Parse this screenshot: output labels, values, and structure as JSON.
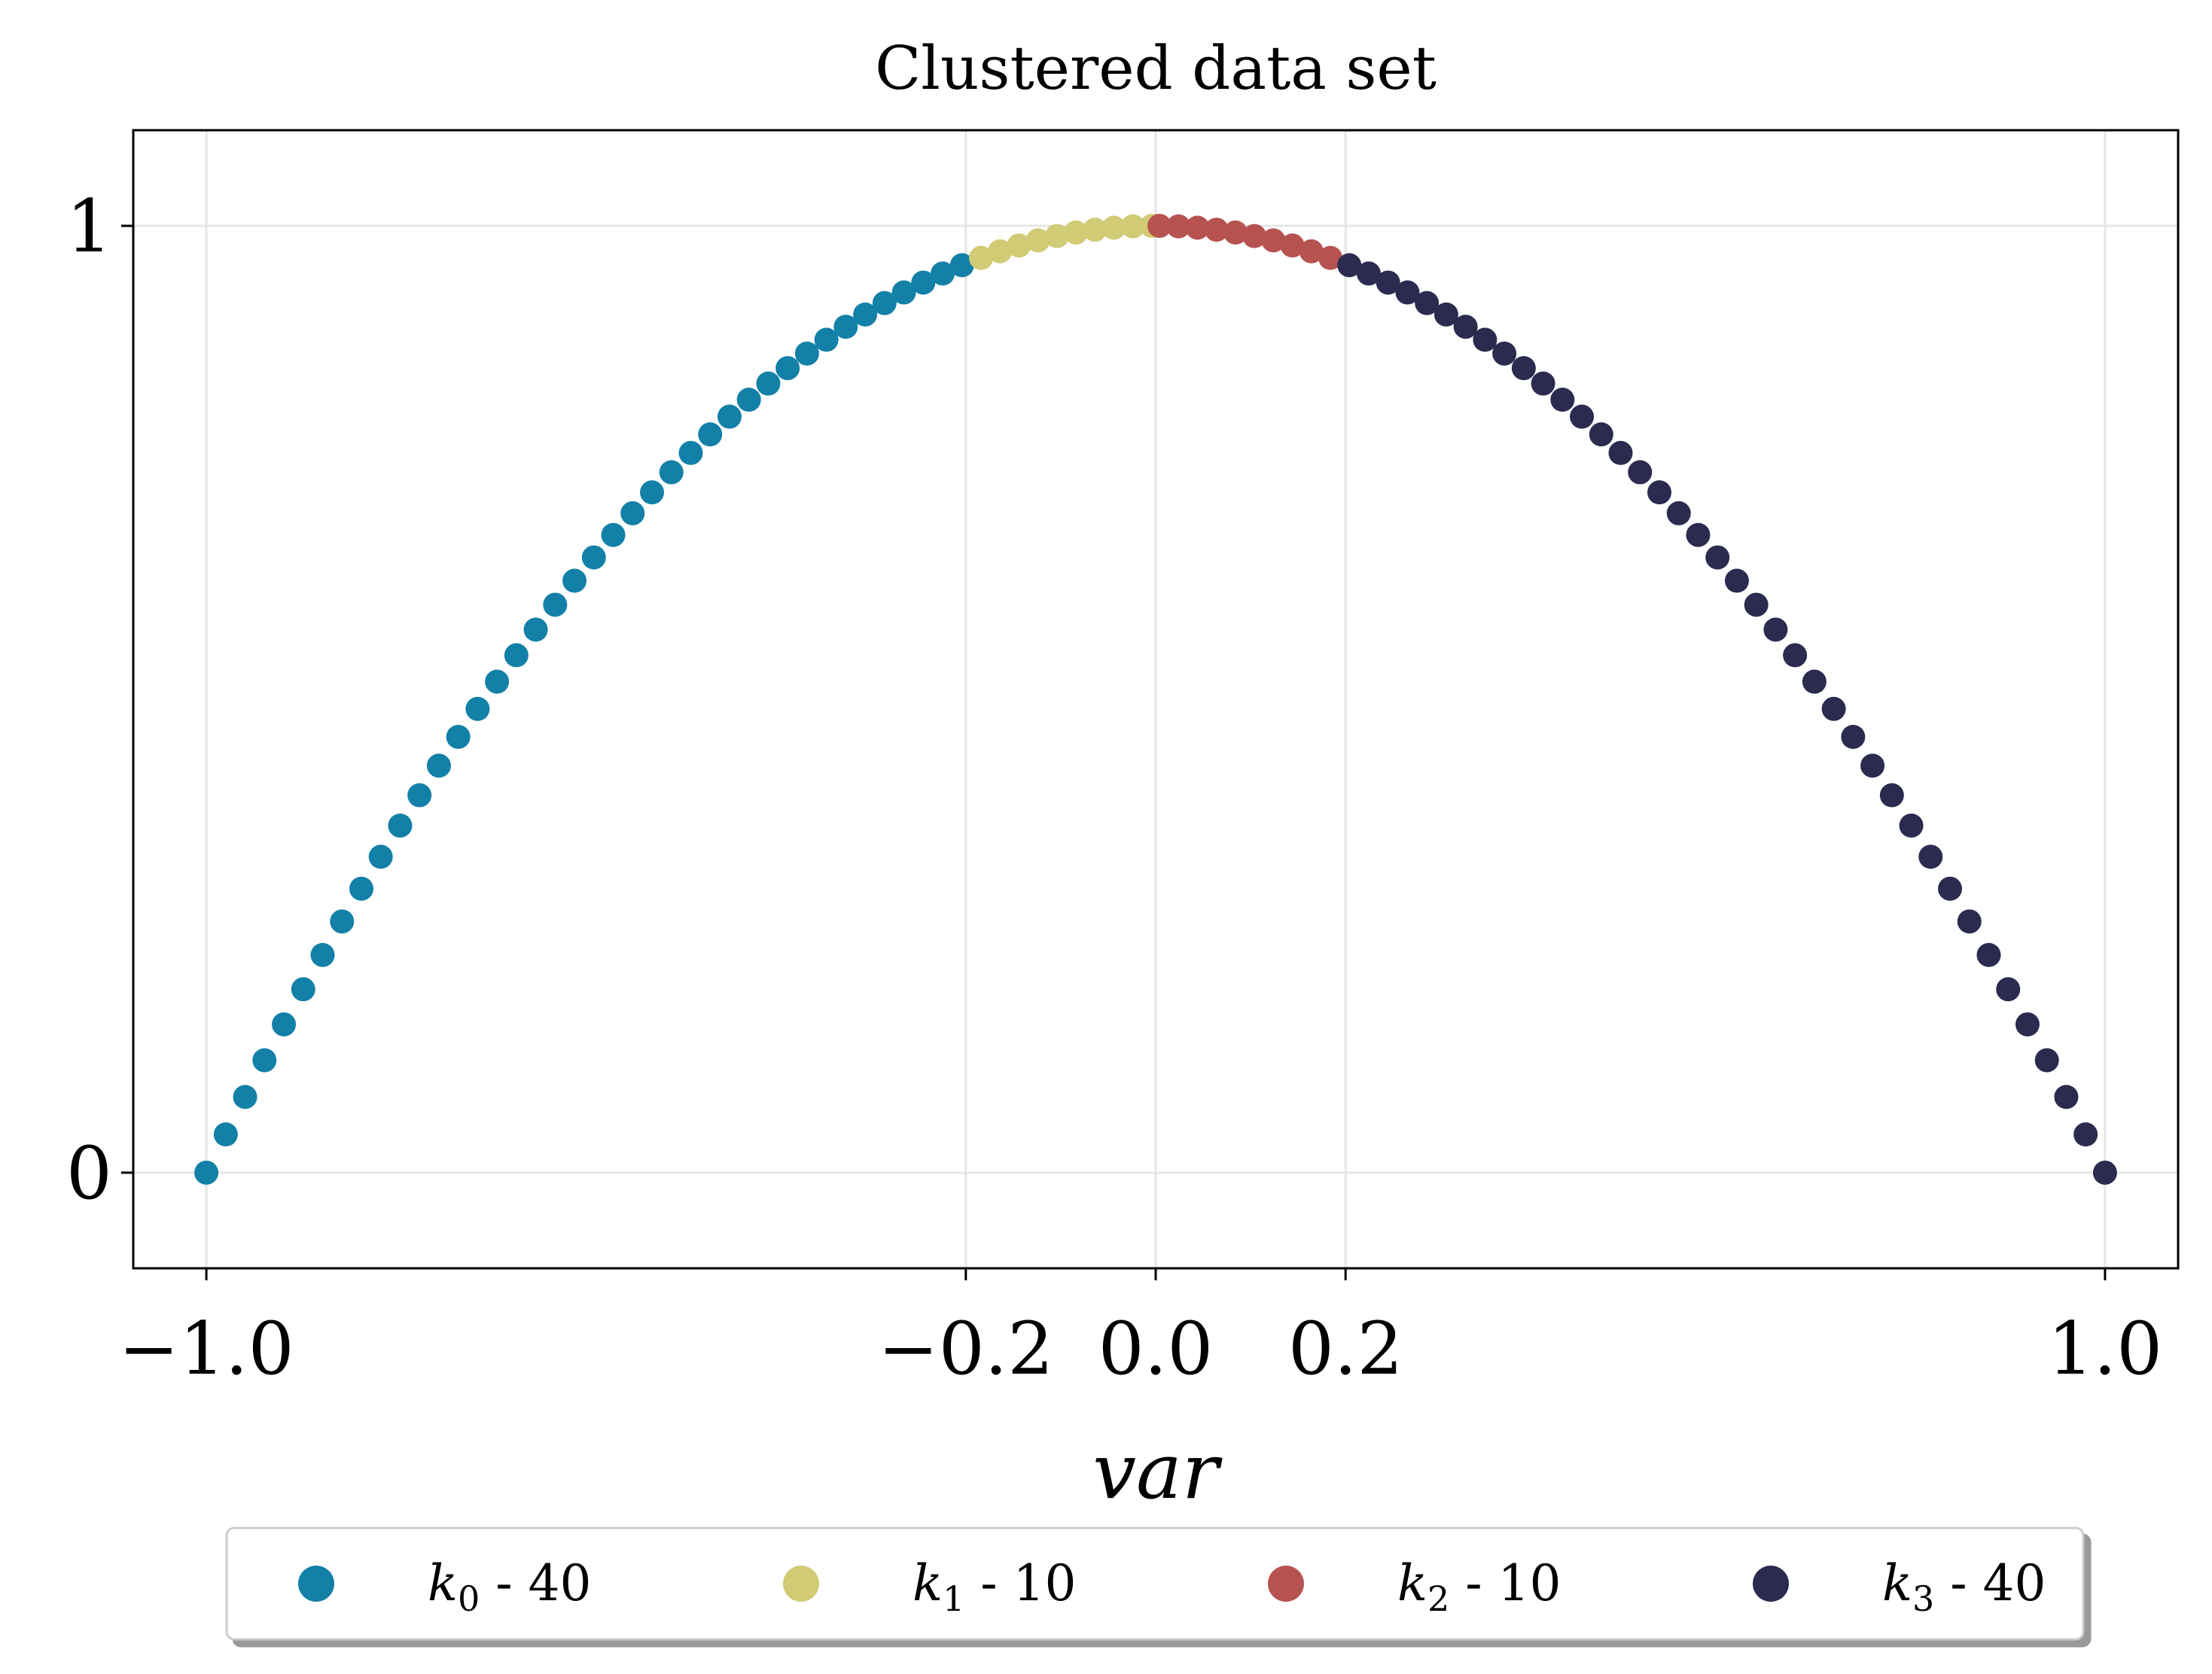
{
  "chart_data": {
    "type": "scatter",
    "title": "Clustered data set",
    "xlabel": "var",
    "ylabel": "",
    "xlim": [
      -1.077,
      1.077
    ],
    "ylim": [
      -0.101,
      1.101
    ],
    "xticks": [
      -1.0,
      -0.2,
      0.0,
      0.2,
      1.0
    ],
    "xtick_labels": [
      "−1.0",
      "−0.2",
      "0.0",
      "0.2",
      "1.0"
    ],
    "yticks": [
      0,
      1
    ],
    "ytick_labels": [
      "0",
      "1"
    ],
    "grid": true,
    "legend_placement": "bottom-center",
    "function": "y = 1 - x^2",
    "series": [
      {
        "name": "k0 - 40",
        "label_main": "k",
        "label_sub": "0",
        "label_rest": " - 40",
        "color": "#1380a8",
        "x_range": [
          -1.0,
          -0.204
        ],
        "count": 40
      },
      {
        "name": "k1 - 10",
        "label_main": "k",
        "label_sub": "1",
        "label_rest": " - 10",
        "color": "#d0cb74",
        "x_range": [
          -0.184,
          -0.004
        ],
        "count": 10
      },
      {
        "name": "k2 - 10",
        "label_main": "k",
        "label_sub": "2",
        "label_rest": " - 10",
        "color": "#b65351",
        "x_range": [
          0.004,
          0.184
        ],
        "count": 10
      },
      {
        "name": "k3 - 40",
        "label_main": "k",
        "label_sub": "3",
        "label_rest": " - 40",
        "color": "#2b2a4f",
        "x_range": [
          0.204,
          1.0
        ],
        "count": 40
      }
    ]
  }
}
